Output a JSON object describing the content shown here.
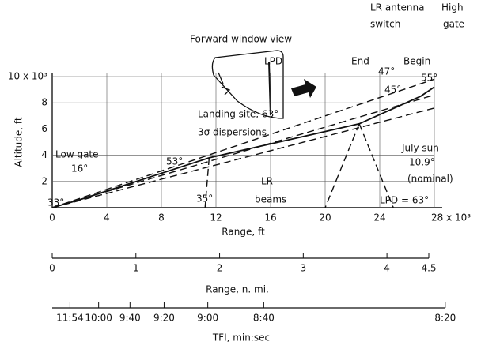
{
  "chart_data": {
    "type": "line",
    "x_label": "Range, ft",
    "y_label": "Altitude, ft",
    "xlim": [
      0,
      28
    ],
    "ylim": [
      0,
      10
    ],
    "xticks": [
      0,
      4,
      8,
      12,
      16,
      20,
      24,
      {
        "value": 28,
        "label": "28 x 10³"
      }
    ],
    "yticks": [
      2,
      4,
      6,
      8,
      {
        "value": 10,
        "label": "10 x 10³"
      }
    ],
    "grid": true,
    "series": [
      {
        "color": "#111",
        "style": "solid",
        "x": [
          0,
          2,
          11.5,
          22.5,
          27,
          28
        ],
        "values": [
          0,
          0.6,
          3.8,
          6.4,
          8.5,
          9.2
        ]
      },
      {
        "color": "#111",
        "style": "dashed",
        "x": [
          0,
          28
        ],
        "values": [
          0,
          9.8
        ]
      },
      {
        "color": "#111",
        "style": "dashed",
        "x": [
          0,
          28
        ],
        "values": [
          0,
          8.6
        ]
      },
      {
        "color": "#111",
        "style": "dashed",
        "x": [
          0,
          28
        ],
        "values": [
          0,
          7.6
        ]
      },
      {
        "color": "#111",
        "style": "dashed",
        "x": [
          11.5,
          11.2
        ],
        "values": [
          3.8,
          0
        ]
      },
      {
        "color": "#111",
        "style": "dashed",
        "x": [
          22.5,
          20
        ],
        "values": [
          6.4,
          0
        ]
      },
      {
        "color": "#111",
        "style": "dashed",
        "x": [
          22.5,
          25
        ],
        "values": [
          6.4,
          0
        ]
      }
    ],
    "nmi_axis": {
      "label": "Range, n. mi.",
      "lim": [
        0,
        4.5
      ],
      "ticks": [
        0,
        1,
        2,
        3,
        4,
        4.5
      ]
    },
    "tfi_axis": {
      "label": "TFI, min:sec",
      "ticks": [
        {
          "value": 1.3,
          "label": "11:54"
        },
        {
          "value": 3.4,
          "label": "10:00"
        },
        {
          "value": 5.7,
          "label": "9:40"
        },
        {
          "value": 8.2,
          "label": "9:20"
        },
        {
          "value": 11.4,
          "label": "9:00"
        },
        {
          "value": 15.5,
          "label": "8:40"
        },
        {
          "value": 28.8,
          "label": "8:20"
        }
      ]
    },
    "annotations": [
      "Forward window view",
      "LPD",
      "Landing site, 63°",
      "3σ dispersions",
      "LR antenna",
      "switch",
      "High",
      "gate",
      "End",
      "Begin",
      "47°",
      "55°",
      "45°",
      "Low gate",
      "16°",
      "33°",
      "53°",
      "35°",
      "LR",
      "beams",
      "July sun",
      "10.9°",
      "(nominal)",
      "LPD = 63°"
    ]
  }
}
